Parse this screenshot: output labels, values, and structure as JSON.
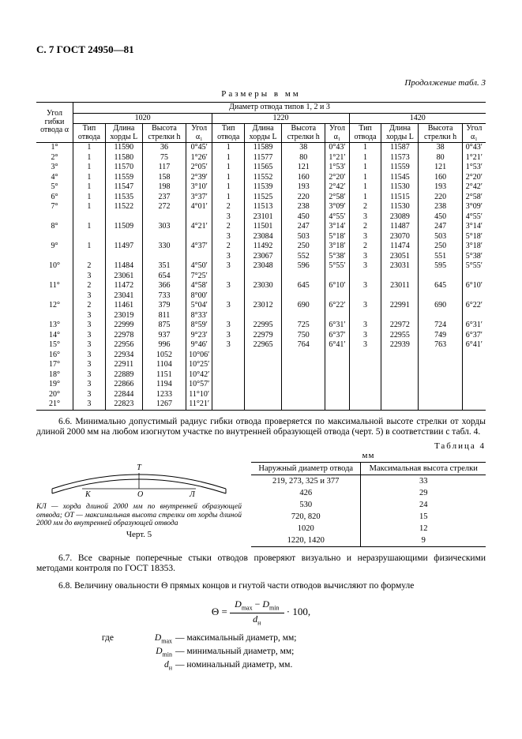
{
  "header": "С. 7 ГОСТ 24950—81",
  "cont_caption": "Продолжение табл. 3",
  "dim_caption": "Размеры в мм",
  "main_table": {
    "super_header": "Диаметр отвода типов 1, 2 и 3",
    "angle_header": "Угол гибки отвода α",
    "diam_groups": [
      "1020",
      "1220",
      "1420"
    ],
    "sub_headers": [
      "Тип отвода",
      "Длина хорды L",
      "Высота стрелки h",
      "Угол α₁"
    ],
    "rows": [
      {
        "a": "1°",
        "g": [
          [
            "1",
            "11590",
            "36",
            "0°45′"
          ],
          [
            "1",
            "11589",
            "38",
            "0°43′"
          ],
          [
            "1",
            "11587",
            "38",
            "0°43′"
          ]
        ]
      },
      {
        "a": "2°",
        "g": [
          [
            "1",
            "11580",
            "75",
            "1°26′"
          ],
          [
            "1",
            "11577",
            "80",
            "1°21′"
          ],
          [
            "1",
            "11573",
            "80",
            "1°21′"
          ]
        ]
      },
      {
        "a": "3°",
        "g": [
          [
            "1",
            "11570",
            "117",
            "2°05′"
          ],
          [
            "1",
            "11565",
            "121",
            "1°53′"
          ],
          [
            "1",
            "11559",
            "121",
            "1°53′"
          ]
        ]
      },
      {
        "a": "4°",
        "g": [
          [
            "1",
            "11559",
            "158",
            "2°39′"
          ],
          [
            "1",
            "11552",
            "160",
            "2°20′"
          ],
          [
            "1",
            "11545",
            "160",
            "2°20′"
          ]
        ]
      },
      {
        "a": "5°",
        "g": [
          [
            "1",
            "11547",
            "198",
            "3°10′"
          ],
          [
            "1",
            "11539",
            "193",
            "2°42′"
          ],
          [
            "1",
            "11530",
            "193",
            "2°42′"
          ]
        ]
      },
      {
        "a": "6°",
        "g": [
          [
            "1",
            "11535",
            "237",
            "3°37′"
          ],
          [
            "1",
            "11525",
            "220",
            "2°58′"
          ],
          [
            "1",
            "11515",
            "220",
            "2°58′"
          ]
        ]
      },
      {
        "a": "7°",
        "g": [
          [
            "1",
            "11522",
            "272",
            "4°01′"
          ],
          [
            "2",
            "11513",
            "238",
            "3°09′"
          ],
          [
            "2",
            "11530",
            "238",
            "3°09′"
          ]
        ]
      },
      {
        "a": "",
        "g": [
          [
            "",
            "",
            "",
            ""
          ],
          [
            "3",
            "23101",
            "450",
            "4°55′"
          ],
          [
            "3",
            "23089",
            "450",
            "4°55′"
          ]
        ]
      },
      {
        "a": "8°",
        "g": [
          [
            "1",
            "11509",
            "303",
            "4°21′"
          ],
          [
            "2",
            "11501",
            "247",
            "3°14′"
          ],
          [
            "2",
            "11487",
            "247",
            "3°14′"
          ]
        ]
      },
      {
        "a": "",
        "g": [
          [
            "",
            "",
            "",
            ""
          ],
          [
            "3",
            "23084",
            "503",
            "5°18′"
          ],
          [
            "3",
            "23070",
            "503",
            "5°18′"
          ]
        ]
      },
      {
        "a": "9°",
        "g": [
          [
            "1",
            "11497",
            "330",
            "4°37′"
          ],
          [
            "2",
            "11492",
            "250",
            "3°18′"
          ],
          [
            "2",
            "11474",
            "250",
            "3°18′"
          ]
        ]
      },
      {
        "a": "",
        "g": [
          [
            "",
            "",
            "",
            ""
          ],
          [
            "3",
            "23067",
            "552",
            "5°38′"
          ],
          [
            "3",
            "23051",
            "551",
            "5°38′"
          ]
        ]
      },
      {
        "a": "10°",
        "g": [
          [
            "2",
            "11484",
            "351",
            "4°50′"
          ],
          [
            "3",
            "23048",
            "596",
            "5°55′"
          ],
          [
            "3",
            "23031",
            "595",
            "5°55′"
          ]
        ]
      },
      {
        "a": "",
        "g": [
          [
            "3",
            "23061",
            "654",
            "7°25′"
          ],
          [
            "",
            "",
            "",
            ""
          ],
          [
            "",
            "",
            "",
            ""
          ]
        ]
      },
      {
        "a": "11°",
        "g": [
          [
            "2",
            "11472",
            "366",
            "4°58′"
          ],
          [
            "3",
            "23030",
            "645",
            "6°10′"
          ],
          [
            "3",
            "23011",
            "645",
            "6°10′"
          ]
        ]
      },
      {
        "a": "",
        "g": [
          [
            "3",
            "23041",
            "733",
            "8°00′"
          ],
          [
            "",
            "",
            "",
            ""
          ],
          [
            "",
            "",
            "",
            ""
          ]
        ]
      },
      {
        "a": "12°",
        "g": [
          [
            "2",
            "11461",
            "379",
            "5°04′"
          ],
          [
            "3",
            "23012",
            "690",
            "6°22′"
          ],
          [
            "3",
            "22991",
            "690",
            "6°22′"
          ]
        ]
      },
      {
        "a": "",
        "g": [
          [
            "3",
            "23019",
            "811",
            "8°33′"
          ],
          [
            "",
            "",
            "",
            ""
          ],
          [
            "",
            "",
            "",
            ""
          ]
        ]
      },
      {
        "a": "13°",
        "g": [
          [
            "3",
            "22999",
            "875",
            "8°59′"
          ],
          [
            "3",
            "22995",
            "725",
            "6°31′"
          ],
          [
            "3",
            "22972",
            "724",
            "6°31′"
          ]
        ]
      },
      {
        "a": "14°",
        "g": [
          [
            "3",
            "22978",
            "937",
            "9°23′"
          ],
          [
            "3",
            "22979",
            "750",
            "6°37′"
          ],
          [
            "3",
            "22955",
            "749",
            "6°37′"
          ]
        ]
      },
      {
        "a": "15°",
        "g": [
          [
            "3",
            "22956",
            "996",
            "9°46′"
          ],
          [
            "3",
            "22965",
            "764",
            "6°41′"
          ],
          [
            "3",
            "22939",
            "763",
            "6°41′"
          ]
        ]
      },
      {
        "a": "16°",
        "g": [
          [
            "3",
            "22934",
            "1052",
            "10°06′"
          ],
          [
            "",
            "",
            "",
            ""
          ],
          [
            "",
            "",
            "",
            ""
          ]
        ]
      },
      {
        "a": "17°",
        "g": [
          [
            "3",
            "22911",
            "1104",
            "10°25′"
          ],
          [
            "",
            "",
            "",
            ""
          ],
          [
            "",
            "",
            "",
            ""
          ]
        ]
      },
      {
        "a": "18°",
        "g": [
          [
            "3",
            "22889",
            "1151",
            "10°42′"
          ],
          [
            "",
            "",
            "",
            ""
          ],
          [
            "",
            "",
            "",
            ""
          ]
        ]
      },
      {
        "a": "19°",
        "g": [
          [
            "3",
            "22866",
            "1194",
            "10°57′"
          ],
          [
            "",
            "",
            "",
            ""
          ],
          [
            "",
            "",
            "",
            ""
          ]
        ]
      },
      {
        "a": "20°",
        "g": [
          [
            "3",
            "22844",
            "1233",
            "11°10′"
          ],
          [
            "",
            "",
            "",
            ""
          ],
          [
            "",
            "",
            "",
            ""
          ]
        ]
      },
      {
        "a": "21°",
        "g": [
          [
            "3",
            "22823",
            "1267",
            "11°21′"
          ],
          [
            "",
            "",
            "",
            ""
          ],
          [
            "",
            "",
            "",
            ""
          ]
        ]
      }
    ]
  },
  "para66": "6.6. Минимально допустимый радиус гибки отвода проверяется по максимальной высоте стрелки от хорды длиной 2000 мм на любом изогнутом участке по внутренней образующей отвода (черт. 5) в соответствии с табл. 4.",
  "tbl4_caption": "Таблица 4",
  "tbl4_mm": "мм",
  "tbl4": {
    "headers": [
      "Наружный диаметр отвода",
      "Максимальная высота стрелки"
    ],
    "rows": [
      [
        "219, 273, 325 и 377",
        "33"
      ],
      [
        "426",
        "29"
      ],
      [
        "530",
        "24"
      ],
      [
        "720, 820",
        "15"
      ],
      [
        "1020",
        "12"
      ],
      [
        "1220, 1420",
        "9"
      ]
    ]
  },
  "fig5_note": "КЛ — хорда длиной 2000 мм по внутренней образующей отвода; ОТ — максимальная высота стрелки от хорды длиной 2000 мм до внутренней образующей отвода",
  "fig5_caption": "Черт. 5",
  "para67": "6.7. Все сварные поперечные стыки отводов проверяют визуально и неразрушающими физическими методами контроля по ГОСТ 18353.",
  "para68": "6.8. Величину овальности Θ прямых концов и гнутой части отводов вычисляют по формуле",
  "formula": {
    "lhs": "Θ =",
    "num": "Dₘₐₓ − Dₘᵢₙ",
    "den": "dₙ",
    "rhs": "· 100,"
  },
  "where": {
    "intro": "где",
    "items": [
      {
        "sym": "Dₘₐₓ",
        "txt": "— максимальный диаметр, мм;"
      },
      {
        "sym": "Dₘᵢₙ",
        "txt": "— минимальный диаметр, мм;"
      },
      {
        "sym": "dₙ",
        "txt": "— номинальный диаметр, мм."
      }
    ]
  }
}
